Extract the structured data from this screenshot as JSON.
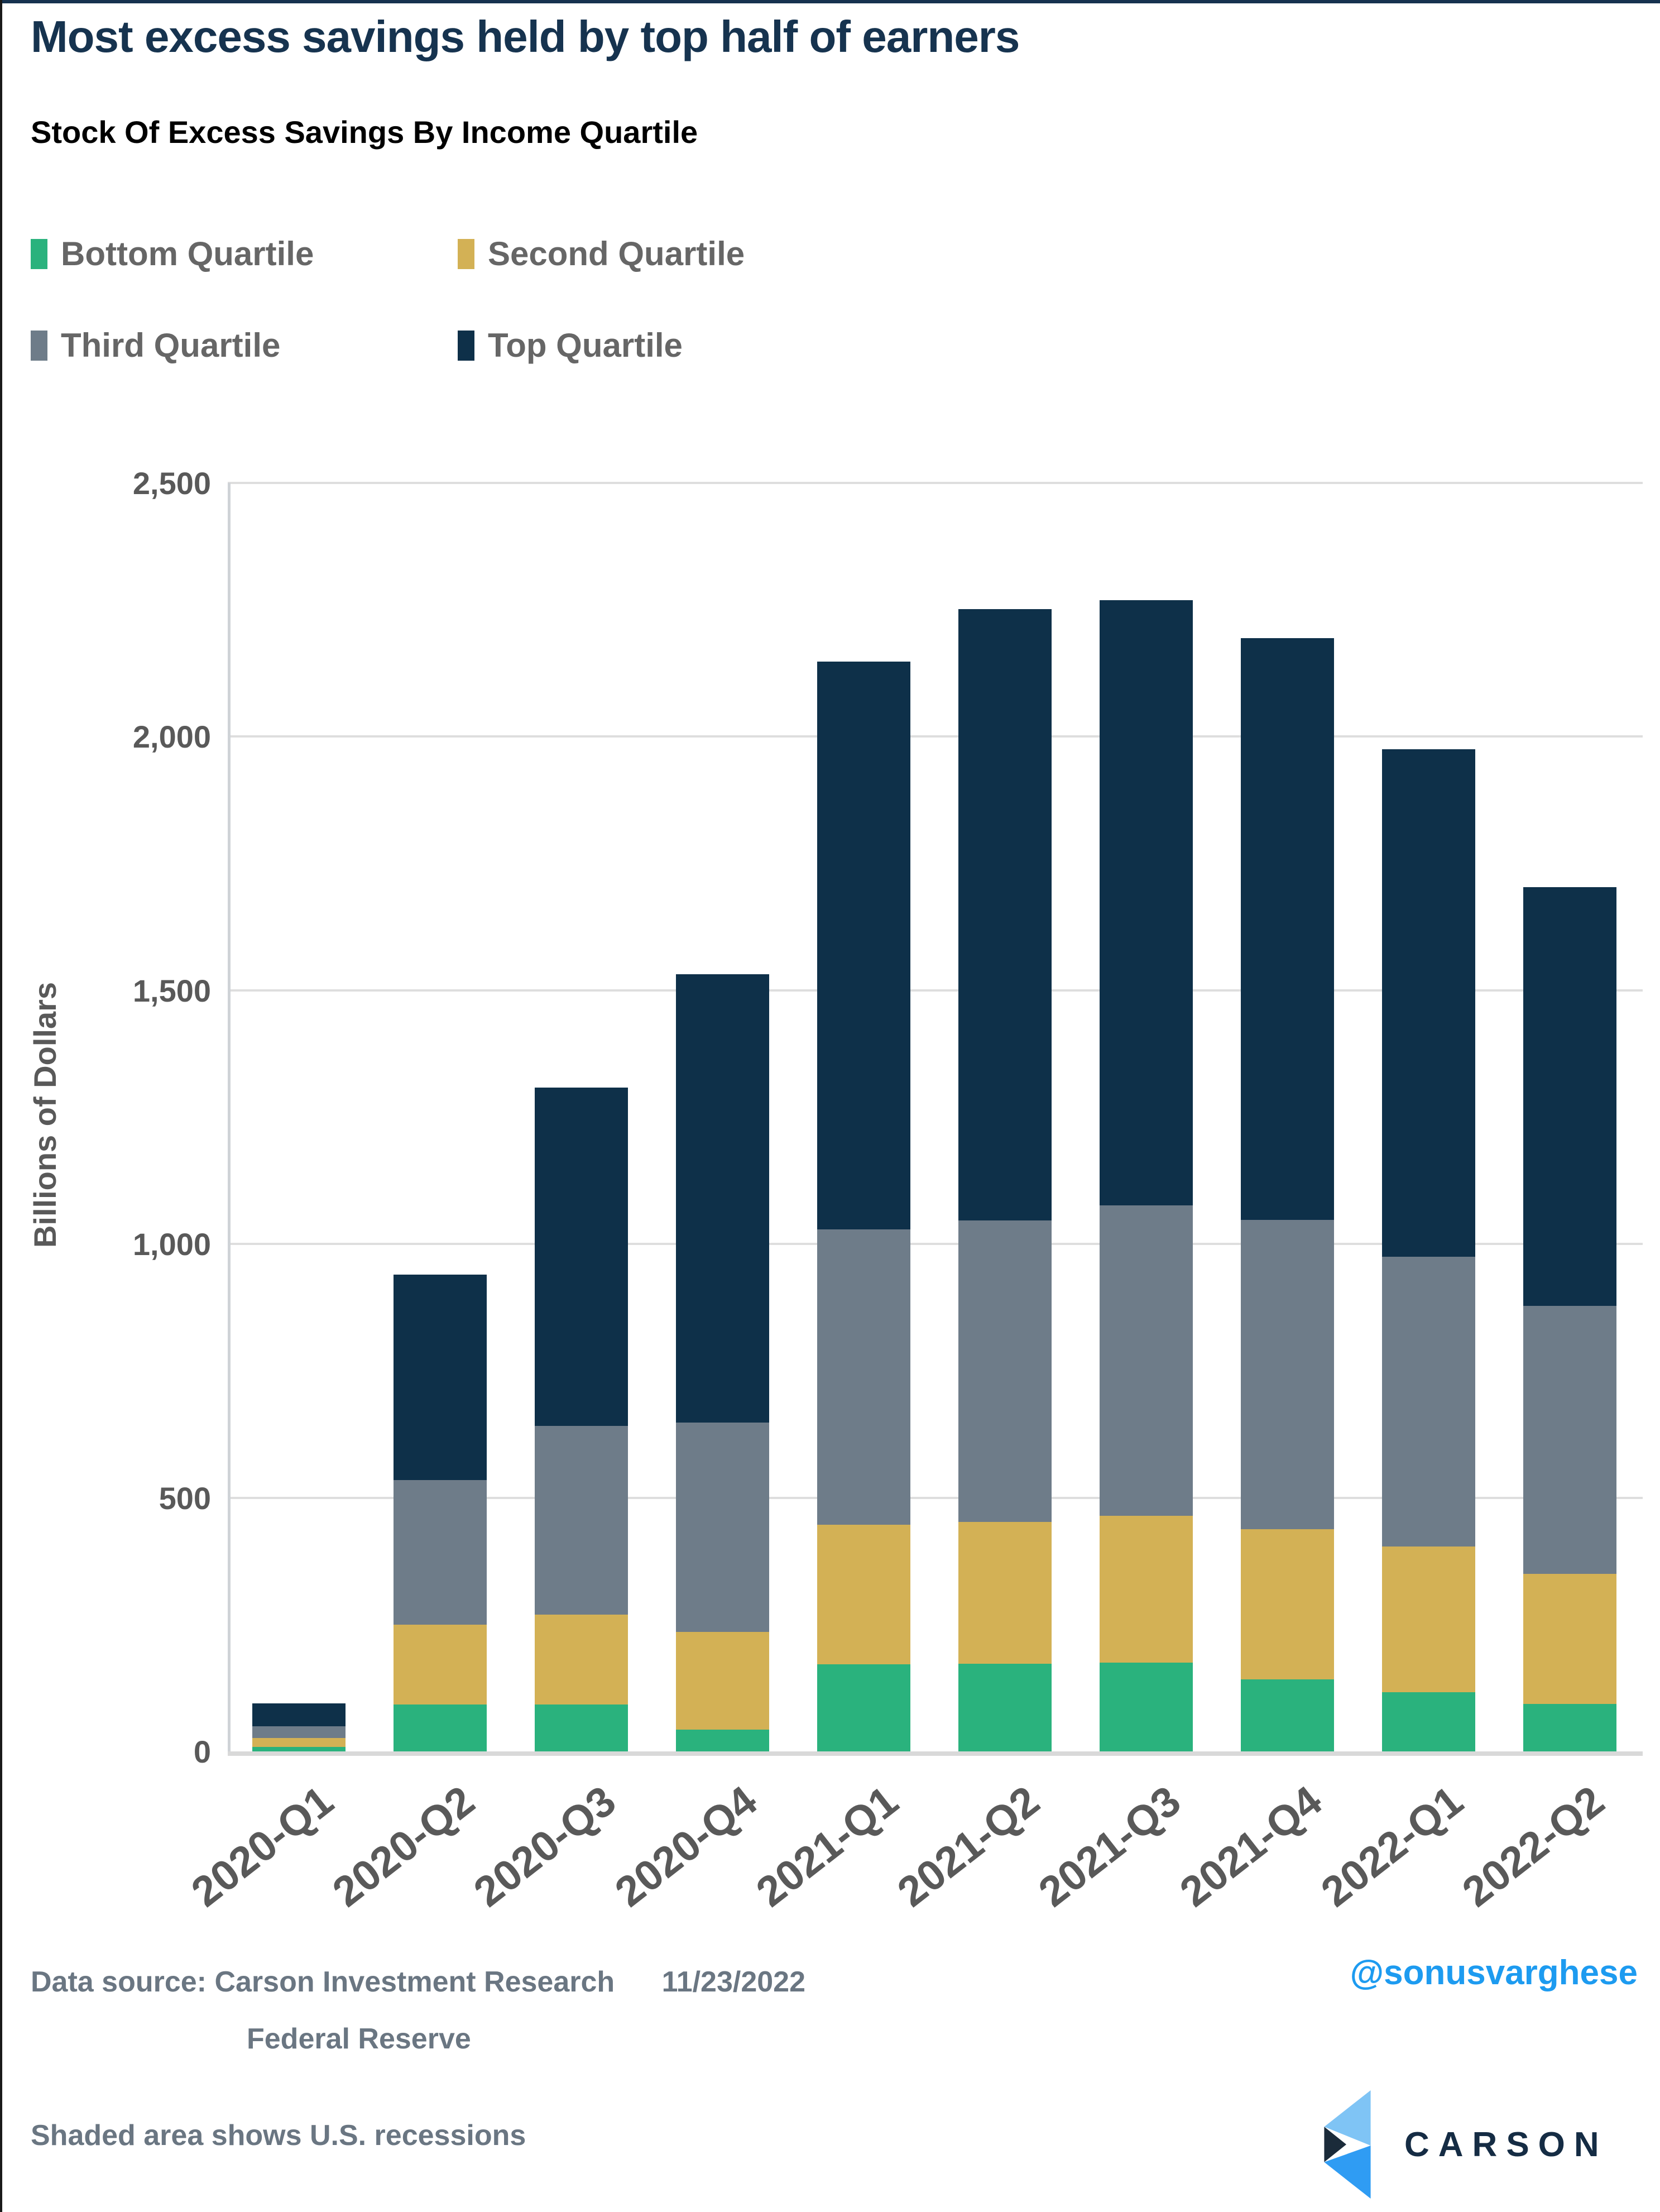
{
  "page": {
    "title": "Most excess savings held by top half of earners",
    "subtitle": "Stock Of Excess Savings By Income Quartile"
  },
  "legend": {
    "items": [
      {
        "label": "Bottom Quartile",
        "color": "#2AB27D"
      },
      {
        "label": "Second Quartile",
        "color": "#D3B155"
      },
      {
        "label": "Third Quartile",
        "color": "#6E7C89"
      },
      {
        "label": "Top Quartile",
        "color": "#0E3049"
      }
    ]
  },
  "chart_data": {
    "type": "bar",
    "stacked": true,
    "title": "Stock Of Excess Savings By Income Quartile",
    "xlabel": "",
    "ylabel": "Billions of Dollars",
    "ylim": [
      0,
      2500
    ],
    "grid": "horizontal",
    "legend_position": "top-left",
    "ytick_values": [
      0,
      500,
      1000,
      1500,
      2000,
      2500
    ],
    "ytick_labels": [
      "0",
      "500",
      "1,000",
      "1,500",
      "2,000",
      "2,500"
    ],
    "categories": [
      "2020-Q1",
      "2020-Q2",
      "2020-Q3",
      "2020-Q4",
      "2021-Q1",
      "2021-Q2",
      "2021-Q3",
      "2021-Q4",
      "2022-Q1",
      "2022-Q2"
    ],
    "series": [
      {
        "name": "Bottom Quartile",
        "color": "#2AB27D",
        "values": [
          9,
          92,
          92,
          43,
          172,
          173,
          175,
          142,
          117,
          93
        ]
      },
      {
        "name": "Second Quartile",
        "color": "#D3B155",
        "values": [
          17,
          158,
          178,
          193,
          275,
          279,
          289,
          296,
          287,
          257
        ]
      },
      {
        "name": "Third Quartile",
        "color": "#6E7C89",
        "values": [
          24,
          285,
          372,
          412,
          582,
          594,
          612,
          609,
          571,
          528
        ]
      },
      {
        "name": "Top Quartile",
        "color": "#0E3049",
        "values": [
          45,
          405,
          666,
          884,
          1119,
          1205,
          1193,
          1147,
          1000,
          825
        ]
      }
    ],
    "totals": [
      95,
      940,
      1308,
      1532,
      2148,
      2251,
      2269,
      2194,
      1975,
      1703
    ]
  },
  "footer": {
    "source_label": "Data source:",
    "source_org": "Carson Investment Research",
    "source_date": "11/23/2022",
    "source_org2": "Federal Reserve",
    "note": "Shaded area shows U.S. recessions",
    "handle": "@sonusvarghese",
    "brand": "CARSON"
  },
  "colors": {
    "accent_navy": "#16324F",
    "grid": "#DEDEDE",
    "axis_text": "#595959",
    "footer_text": "#6A7682",
    "twitter_blue": "#1D9BF0",
    "logo_light_blue": "#7FC4F5",
    "logo_mid_blue": "#2F9CF3",
    "logo_dark": "#1B2B3A"
  }
}
